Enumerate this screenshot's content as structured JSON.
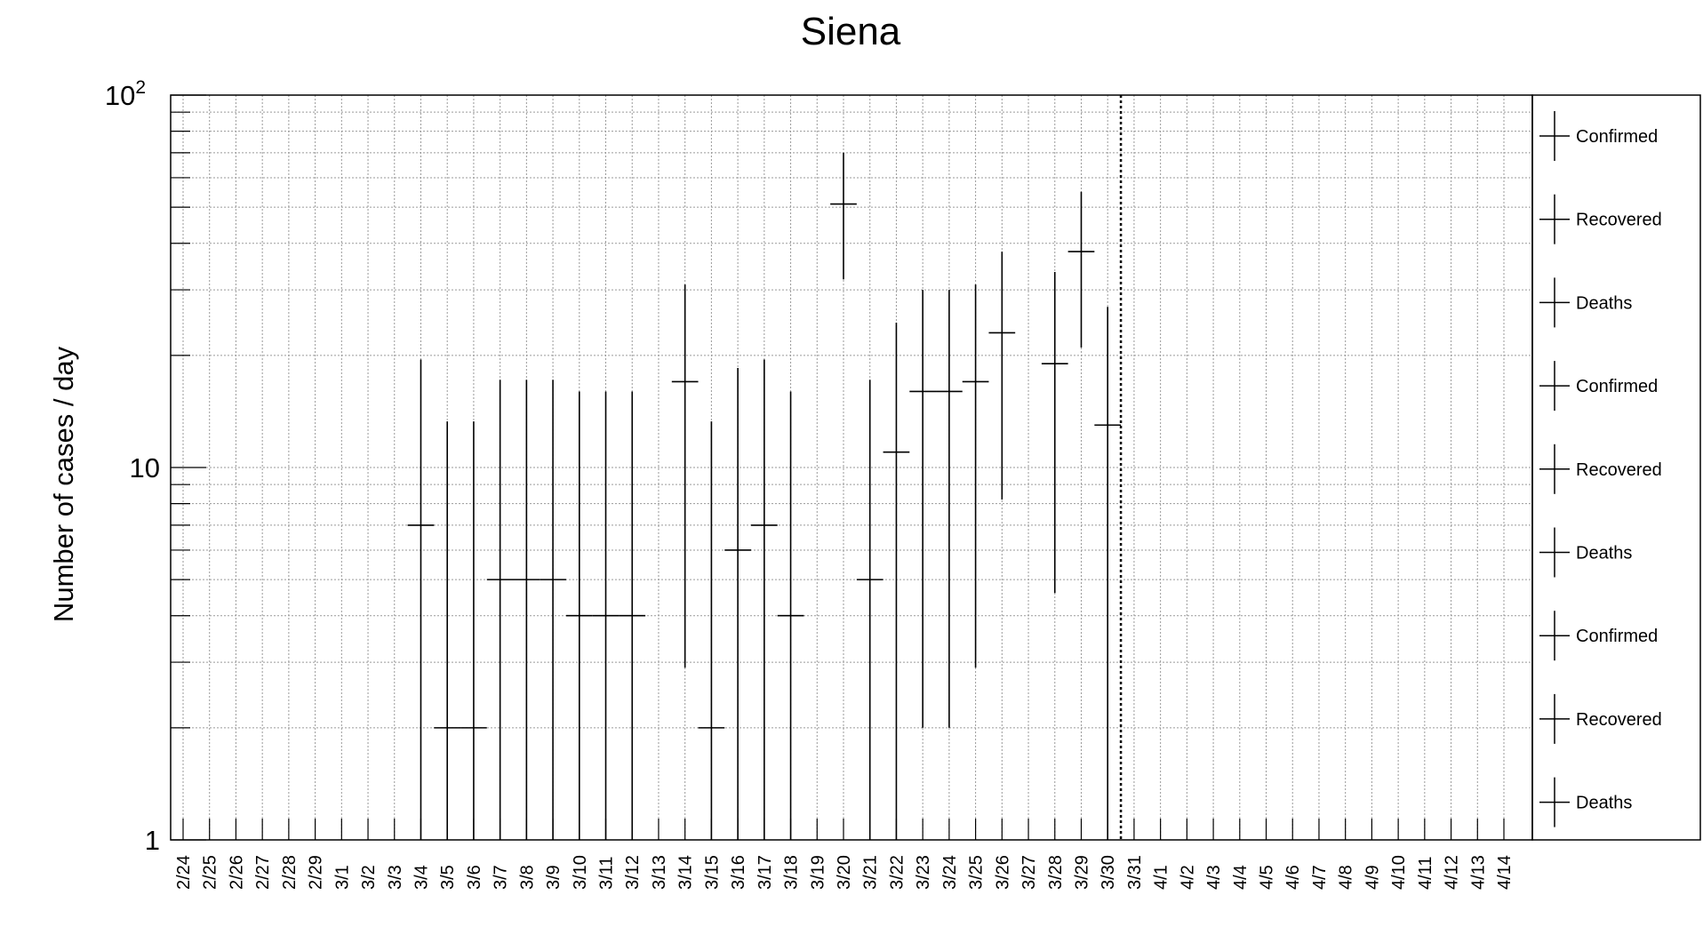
{
  "chart_data": {
    "type": "scatter",
    "title": "Siena",
    "xlabel": "",
    "ylabel": "Number of cases / day",
    "y_scale": "log",
    "ylim": [
      1,
      100
    ],
    "y_ticks": [
      {
        "value": 1,
        "label": "1",
        "sup": ""
      },
      {
        "value": 10,
        "label": "10",
        "sup": ""
      },
      {
        "value": 100,
        "label": "10",
        "sup": "2"
      }
    ],
    "grid": true,
    "legend_position": "right",
    "categories": [
      "2/24",
      "2/25",
      "2/26",
      "2/27",
      "2/28",
      "2/29",
      "3/1",
      "3/2",
      "3/3",
      "3/4",
      "3/5",
      "3/6",
      "3/7",
      "3/8",
      "3/9",
      "3/10",
      "3/11",
      "3/12",
      "3/13",
      "3/14",
      "3/15",
      "3/16",
      "3/17",
      "3/18",
      "3/19",
      "3/20",
      "3/21",
      "3/22",
      "3/23",
      "3/24",
      "3/25",
      "3/26",
      "3/27",
      "3/28",
      "3/29",
      "3/30",
      "3/31",
      "4/1",
      "4/2",
      "4/3",
      "4/4",
      "4/5",
      "4/6",
      "4/7",
      "4/8",
      "4/9",
      "4/10",
      "4/11",
      "4/12",
      "4/13",
      "4/14"
    ],
    "vertical_marker": "3/30",
    "points": [
      {
        "x": "3/4",
        "y": 7,
        "ylow": 1,
        "yhigh": 19.5
      },
      {
        "x": "3/5",
        "y": 2,
        "ylow": 1,
        "yhigh": 13.3
      },
      {
        "x": "3/6",
        "y": 2,
        "ylow": 1,
        "yhigh": 13.3
      },
      {
        "x": "3/7",
        "y": 5,
        "ylow": 1,
        "yhigh": 17.2
      },
      {
        "x": "3/8",
        "y": 5,
        "ylow": 1,
        "yhigh": 17.2
      },
      {
        "x": "3/9",
        "y": 5,
        "ylow": 1,
        "yhigh": 17.2
      },
      {
        "x": "3/10",
        "y": 4,
        "ylow": 1,
        "yhigh": 16
      },
      {
        "x": "3/11",
        "y": 4,
        "ylow": 1,
        "yhigh": 16
      },
      {
        "x": "3/12",
        "y": 4,
        "ylow": 1,
        "yhigh": 16
      },
      {
        "x": "3/14",
        "y": 17,
        "ylow": 2.9,
        "yhigh": 31
      },
      {
        "x": "3/15",
        "y": 2,
        "ylow": 1,
        "yhigh": 13.3
      },
      {
        "x": "3/16",
        "y": 6,
        "ylow": 1,
        "yhigh": 18.5
      },
      {
        "x": "3/17",
        "y": 7,
        "ylow": 1,
        "yhigh": 19.5
      },
      {
        "x": "3/18",
        "y": 4,
        "ylow": 1,
        "yhigh": 16
      },
      {
        "x": "3/20",
        "y": 51,
        "ylow": 32,
        "yhigh": 70
      },
      {
        "x": "3/21",
        "y": 5,
        "ylow": 1,
        "yhigh": 17.2
      },
      {
        "x": "3/22",
        "y": 11,
        "ylow": 1,
        "yhigh": 24.5
      },
      {
        "x": "3/23",
        "y": 16,
        "ylow": 2,
        "yhigh": 30
      },
      {
        "x": "3/24",
        "y": 16,
        "ylow": 2,
        "yhigh": 30
      },
      {
        "x": "3/25",
        "y": 17,
        "ylow": 2.9,
        "yhigh": 31
      },
      {
        "x": "3/26",
        "y": 23,
        "ylow": 8.2,
        "yhigh": 38
      },
      {
        "x": "3/28",
        "y": 19,
        "ylow": 4.6,
        "yhigh": 33.5
      },
      {
        "x": "3/29",
        "y": 38,
        "ylow": 21,
        "yhigh": 55
      },
      {
        "x": "3/30",
        "y": 13,
        "ylow": 1,
        "yhigh": 27
      }
    ],
    "legend": [
      "Confirmed",
      "Recovered",
      "Deaths",
      "Confirmed",
      "Recovered",
      "Deaths",
      "Confirmed",
      "Recovered",
      "Deaths"
    ]
  }
}
